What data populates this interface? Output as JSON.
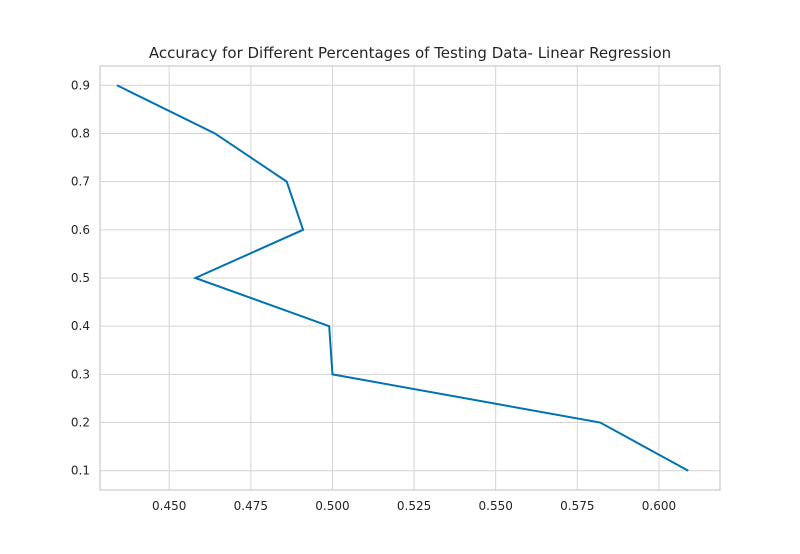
{
  "chart_data": {
    "type": "line",
    "title": "Accuracy for Different Percentages of Testing Data- Linear Regression",
    "xlabel": "",
    "ylabel": "",
    "xlim": [
      0.4288,
      0.6187
    ],
    "ylim": [
      0.06,
      0.94
    ],
    "grid": true,
    "legend": "none",
    "x_ticks": [
      0.45,
      0.475,
      0.5,
      0.525,
      0.55,
      0.575,
      0.6
    ],
    "x_tick_labels": [
      "0.450",
      "0.475",
      "0.500",
      "0.525",
      "0.550",
      "0.575",
      "0.600"
    ],
    "y_ticks": [
      0.1,
      0.2,
      0.3,
      0.4,
      0.5,
      0.6,
      0.7,
      0.8,
      0.9
    ],
    "y_tick_labels": [
      "0.1",
      "0.2",
      "0.3",
      "0.4",
      "0.5",
      "0.6",
      "0.7",
      "0.8",
      "0.9"
    ],
    "series": [
      {
        "color": "#0072B2",
        "points": [
          {
            "x": 0.609,
            "y": 0.1
          },
          {
            "x": 0.582,
            "y": 0.2
          },
          {
            "x": 0.5,
            "y": 0.3
          },
          {
            "x": 0.499,
            "y": 0.4
          },
          {
            "x": 0.458,
            "y": 0.5
          },
          {
            "x": 0.491,
            "y": 0.6
          },
          {
            "x": 0.486,
            "y": 0.7
          },
          {
            "x": 0.464,
            "y": 0.8
          },
          {
            "x": 0.434,
            "y": 0.9
          }
        ]
      }
    ],
    "colors": {
      "grid": "#d4d4d4",
      "axes_edge": "#cccccc",
      "text": "#262626"
    }
  }
}
